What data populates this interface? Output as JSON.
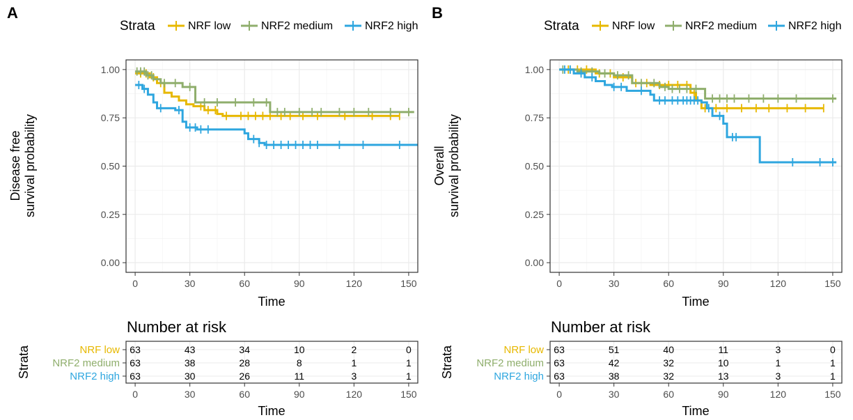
{
  "colors": {
    "nrf_low": "#E7B800",
    "nrf2_medium": "#8FAE6C",
    "nrf2_high": "#2EA6DF"
  },
  "legend": {
    "title": "Strata",
    "items": [
      "NRF low",
      "NRF2 medium",
      "NRF2 high"
    ]
  },
  "chart_data": [
    {
      "panel": "A",
      "type": "line",
      "subtype": "kaplan-meier",
      "xlabel": "Time",
      "ylabel_lines": [
        "Disease free",
        "survival probability"
      ],
      "xlim": [
        -5,
        155
      ],
      "ylim": [
        -0.05,
        1.05
      ],
      "xticks": [
        0,
        30,
        60,
        90,
        120,
        150
      ],
      "yticks": [
        0.0,
        0.25,
        0.5,
        0.75,
        1.0
      ],
      "ytick_labels": [
        "0.00",
        "0.25",
        "0.50",
        "0.75",
        "1.00"
      ],
      "grid": true,
      "legend_position": "top",
      "series": [
        {
          "name": "NRF low",
          "color_key": "nrf_low",
          "steps": [
            [
              0,
              0.98
            ],
            [
              8,
              0.96
            ],
            [
              12,
              0.93
            ],
            [
              16,
              0.88
            ],
            [
              20,
              0.86
            ],
            [
              24,
              0.84
            ],
            [
              28,
              0.82
            ],
            [
              32,
              0.81
            ],
            [
              38,
              0.79
            ],
            [
              45,
              0.77
            ],
            [
              48,
              0.76
            ],
            [
              145,
              0.76
            ]
          ],
          "censor": [
            3,
            6,
            10,
            14,
            36,
            40,
            44,
            50,
            58,
            62,
            66,
            70,
            74,
            80,
            85,
            92,
            100,
            115,
            130,
            140,
            145
          ]
        },
        {
          "name": "NRF2 medium",
          "color_key": "nrf2_medium",
          "steps": [
            [
              0,
              0.99
            ],
            [
              6,
              0.97
            ],
            [
              10,
              0.95
            ],
            [
              14,
              0.93
            ],
            [
              26,
              0.91
            ],
            [
              33,
              0.83
            ],
            [
              74,
              0.78
            ],
            [
              153,
              0.78
            ]
          ],
          "censor": [
            1,
            3,
            5,
            7,
            9,
            16,
            22,
            30,
            38,
            45,
            55,
            65,
            72,
            78,
            82,
            90,
            97,
            102,
            112,
            120,
            128,
            140,
            150
          ]
        },
        {
          "name": "NRF2 high",
          "color_key": "nrf2_high",
          "steps": [
            [
              0,
              0.92
            ],
            [
              4,
              0.9
            ],
            [
              7,
              0.87
            ],
            [
              10,
              0.83
            ],
            [
              12,
              0.8
            ],
            [
              22,
              0.79
            ],
            [
              26,
              0.73
            ],
            [
              28,
              0.7
            ],
            [
              34,
              0.69
            ],
            [
              60,
              0.67
            ],
            [
              62,
              0.64
            ],
            [
              68,
              0.62
            ],
            [
              71,
              0.61
            ],
            [
              155,
              0.61
            ]
          ],
          "censor": [
            2,
            5,
            14,
            24,
            30,
            33,
            36,
            40,
            65,
            68,
            72,
            76,
            80,
            84,
            88,
            92,
            96,
            100,
            112,
            125,
            145
          ]
        }
      ],
      "risk_table": {
        "title": "Number at risk",
        "ylabel": "Strata",
        "xlabel": "Time",
        "times": [
          0,
          30,
          60,
          90,
          120,
          150
        ],
        "rows": [
          {
            "label": "NRF low",
            "color_key": "nrf_low",
            "values": [
              "63",
              "43",
              "34",
              "10",
              "2",
              "0"
            ]
          },
          {
            "label": "NRF2 medium",
            "color_key": "nrf2_medium",
            "values": [
              "63",
              "38",
              "28",
              "8",
              "1",
              "1"
            ]
          },
          {
            "label": "NRF2 high",
            "color_key": "nrf2_high",
            "values": [
              "63",
              "30",
              "26",
              "11",
              "3",
              "1"
            ]
          }
        ]
      }
    },
    {
      "panel": "B",
      "type": "line",
      "subtype": "kaplan-meier",
      "xlabel": "Time",
      "ylabel_lines": [
        "Overall",
        "survival probability"
      ],
      "xlim": [
        -5,
        155
      ],
      "ylim": [
        -0.05,
        1.05
      ],
      "xticks": [
        0,
        30,
        60,
        90,
        120,
        150
      ],
      "yticks": [
        0.0,
        0.25,
        0.5,
        0.75,
        1.0
      ],
      "ytick_labels": [
        "0.00",
        "0.25",
        "0.50",
        "0.75",
        "1.00"
      ],
      "grid": true,
      "legend_position": "top",
      "series": [
        {
          "name": "NRF low",
          "color_key": "nrf_low",
          "steps": [
            [
              0,
              1.0
            ],
            [
              20,
              0.98
            ],
            [
              30,
              0.96
            ],
            [
              40,
              0.93
            ],
            [
              50,
              0.92
            ],
            [
              72,
              0.88
            ],
            [
              75,
              0.84
            ],
            [
              78,
              0.8
            ],
            [
              145,
              0.8
            ]
          ],
          "censor": [
            5,
            10,
            15,
            22,
            28,
            35,
            42,
            48,
            55,
            60,
            65,
            70,
            74,
            80,
            86,
            92,
            100,
            108,
            115,
            125,
            135,
            145
          ]
        },
        {
          "name": "NRF2 medium",
          "color_key": "nrf2_medium",
          "steps": [
            [
              0,
              1.0
            ],
            [
              10,
              0.99
            ],
            [
              22,
              0.98
            ],
            [
              30,
              0.97
            ],
            [
              40,
              0.93
            ],
            [
              55,
              0.91
            ],
            [
              60,
              0.9
            ],
            [
              80,
              0.85
            ],
            [
              152,
              0.85
            ]
          ],
          "censor": [
            2,
            6,
            12,
            18,
            25,
            32,
            38,
            45,
            52,
            58,
            62,
            66,
            70,
            75,
            84,
            88,
            92,
            96,
            104,
            112,
            120,
            130,
            150
          ]
        },
        {
          "name": "NRF2 high",
          "color_key": "nrf2_high",
          "steps": [
            [
              0,
              1.0
            ],
            [
              8,
              0.98
            ],
            [
              14,
              0.96
            ],
            [
              20,
              0.94
            ],
            [
              25,
              0.92
            ],
            [
              29,
              0.91
            ],
            [
              37,
              0.89
            ],
            [
              50,
              0.87
            ],
            [
              52,
              0.84
            ],
            [
              78,
              0.83
            ],
            [
              81,
              0.8
            ],
            [
              84,
              0.76
            ],
            [
              90,
              0.72
            ],
            [
              92,
              0.65
            ],
            [
              110,
              0.52
            ],
            [
              152,
              0.52
            ]
          ],
          "censor": [
            3,
            6,
            12,
            18,
            30,
            34,
            45,
            55,
            58,
            62,
            65,
            68,
            70,
            72,
            74,
            76,
            82,
            88,
            95,
            97,
            128,
            143,
            150
          ]
        }
      ],
      "risk_table": {
        "title": "Number at risk",
        "ylabel": "Strata",
        "xlabel": "Time",
        "times": [
          0,
          30,
          60,
          90,
          120,
          150
        ],
        "rows": [
          {
            "label": "NRF low",
            "color_key": "nrf_low",
            "values": [
              "63",
              "51",
              "40",
              "11",
              "3",
              "0"
            ]
          },
          {
            "label": "NRF2 medium",
            "color_key": "nrf2_medium",
            "values": [
              "63",
              "42",
              "32",
              "10",
              "1",
              "1"
            ]
          },
          {
            "label": "NRF2 high",
            "color_key": "nrf2_high",
            "values": [
              "63",
              "38",
              "32",
              "13",
              "3",
              "1"
            ]
          }
        ]
      }
    }
  ]
}
